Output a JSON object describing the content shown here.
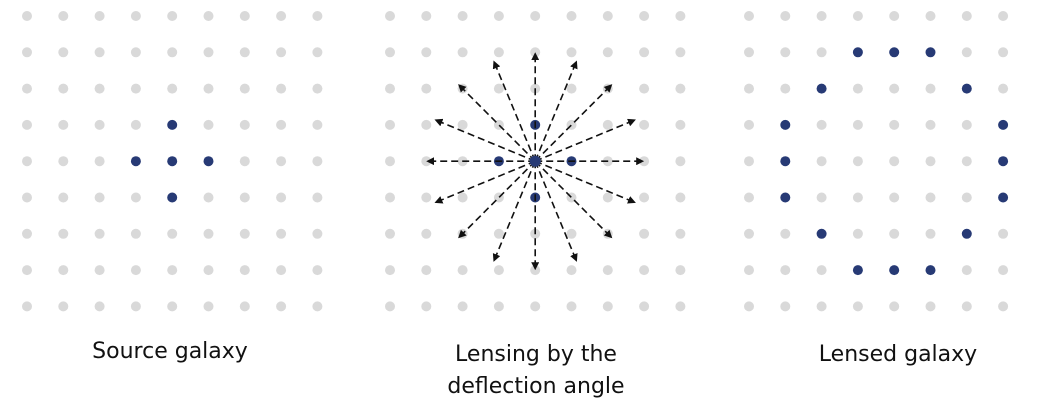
{
  "colors": {
    "grid_dot": "#d9d9d9",
    "highlight_dot": "#273a75",
    "arrow": "#111111",
    "text": "#111111"
  },
  "panels": [
    {
      "id": "source",
      "caption": "Source galaxy",
      "grid": {
        "cols": 9,
        "rows": 9
      },
      "highlighted": [
        [
          4,
          3
        ],
        [
          3,
          4
        ],
        [
          4,
          4
        ],
        [
          5,
          4
        ],
        [
          4,
          5
        ]
      ],
      "arrows": 0
    },
    {
      "id": "lensing",
      "caption": "Lensing by the\ndeflection angle",
      "grid": {
        "cols": 9,
        "rows": 9
      },
      "highlighted": [
        [
          4,
          3
        ],
        [
          3,
          4
        ],
        [
          4,
          4
        ],
        [
          5,
          4
        ],
        [
          4,
          5
        ]
      ],
      "arrows": 16
    },
    {
      "id": "lensed",
      "caption": "Lensed galaxy",
      "grid": {
        "cols": 8,
        "rows": 9
      },
      "highlighted": [
        [
          3,
          1
        ],
        [
          4,
          1
        ],
        [
          5,
          1
        ],
        [
          2,
          2
        ],
        [
          6,
          2
        ],
        [
          1,
          3
        ],
        [
          7,
          3
        ],
        [
          1,
          4
        ],
        [
          7,
          4
        ],
        [
          1,
          5
        ],
        [
          7,
          5
        ],
        [
          2,
          6
        ],
        [
          6,
          6
        ],
        [
          3,
          7
        ],
        [
          4,
          7
        ],
        [
          5,
          7
        ]
      ],
      "arrows": 0
    }
  ]
}
